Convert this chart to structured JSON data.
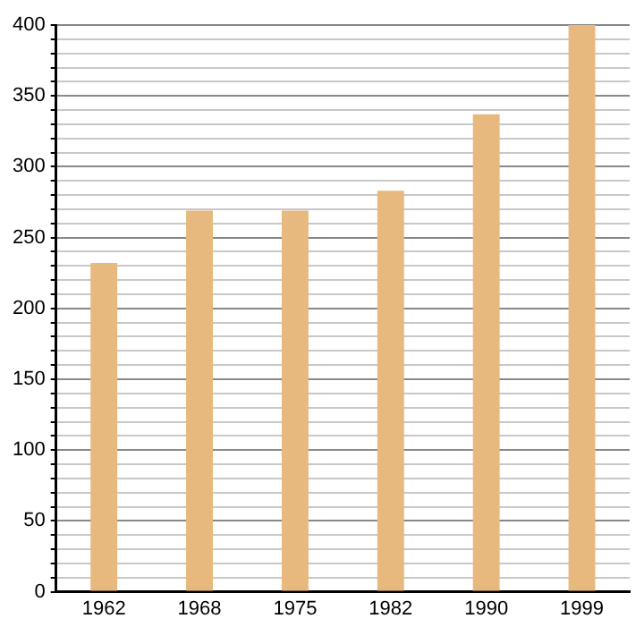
{
  "chart_data": {
    "type": "bar",
    "categories": [
      "1962",
      "1968",
      "1975",
      "1982",
      "1990",
      "1999"
    ],
    "values": [
      232,
      269,
      269,
      283,
      337,
      400
    ],
    "color": "#e8b97e",
    "ylim": [
      0,
      400
    ],
    "yticks": [
      0,
      {
        "value": 10,
        "label": null
      },
      {
        "value": 20,
        "label": null
      },
      {
        "value": 30,
        "label": null
      },
      {
        "value": 40,
        "label": null
      },
      50,
      {
        "value": 60,
        "label": null
      },
      {
        "value": 70,
        "label": null
      },
      {
        "value": 80,
        "label": null
      },
      {
        "value": 90,
        "label": null
      },
      100,
      {
        "value": 110,
        "label": null
      },
      {
        "value": 120,
        "label": null
      },
      {
        "value": 130,
        "label": null
      },
      {
        "value": 140,
        "label": null
      },
      150,
      {
        "value": 160,
        "label": null
      },
      {
        "value": 170,
        "label": null
      },
      {
        "value": 180,
        "label": null
      },
      {
        "value": 190,
        "label": null
      },
      200,
      {
        "value": 210,
        "label": null
      },
      {
        "value": 220,
        "label": null
      },
      {
        "value": 230,
        "label": null
      },
      {
        "value": 240,
        "label": null
      },
      250,
      {
        "value": 260,
        "label": null
      },
      {
        "value": 270,
        "label": null
      },
      {
        "value": 280,
        "label": null
      },
      {
        "value": 290,
        "label": null
      },
      300,
      {
        "value": 310,
        "label": null
      },
      {
        "value": 320,
        "label": null
      },
      {
        "value": 330,
        "label": null
      },
      {
        "value": 340,
        "label": null
      },
      350,
      {
        "value": 360,
        "label": null
      },
      {
        "value": 370,
        "label": null
      },
      {
        "value": 380,
        "label": null
      },
      {
        "value": 390,
        "label": null
      },
      400
    ],
    "grid": "y"
  }
}
